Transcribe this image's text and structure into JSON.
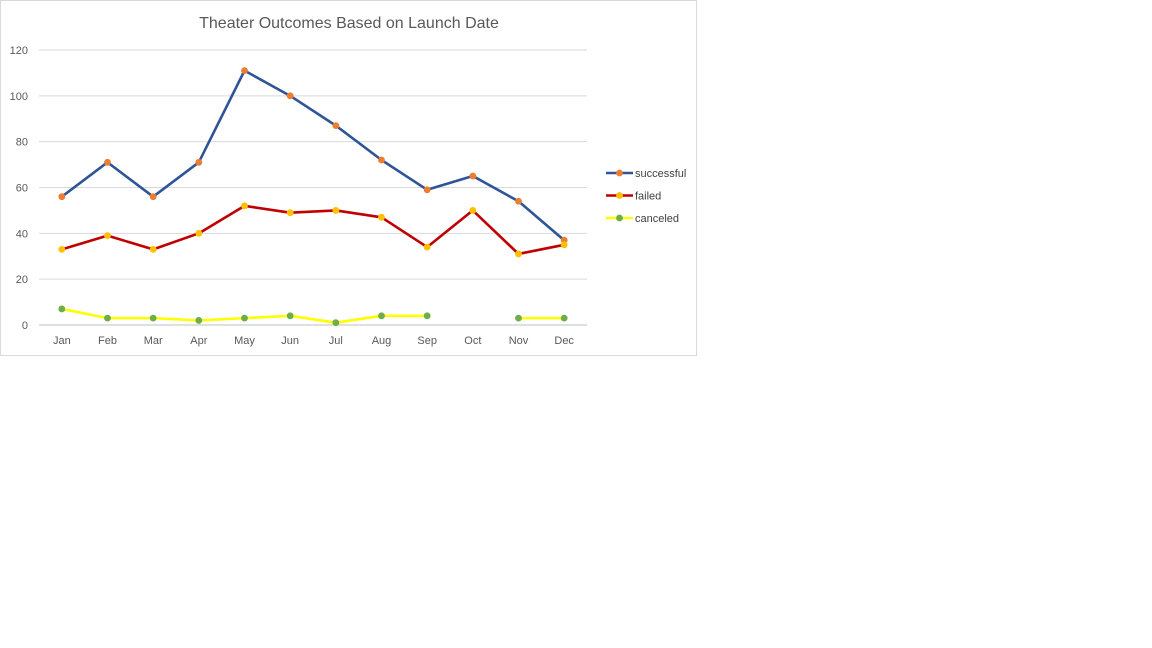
{
  "chart_data": {
    "type": "line",
    "title": "Theater Outcomes Based on Launch Date",
    "xlabel": "",
    "ylabel": "",
    "categories": [
      "Jan",
      "Feb",
      "Mar",
      "Apr",
      "May",
      "Jun",
      "Jul",
      "Aug",
      "Sep",
      "Oct",
      "Nov",
      "Dec"
    ],
    "ylim": [
      0,
      120
    ],
    "yticks": [
      0,
      20,
      40,
      60,
      80,
      100,
      120
    ],
    "grid": true,
    "legend_position": "right",
    "series": [
      {
        "name": "successful",
        "values": [
          56,
          71,
          56,
          71,
          111,
          100,
          87,
          72,
          59,
          65,
          54,
          37
        ],
        "line_color": "#2f5597",
        "marker_color": "#ed7d31"
      },
      {
        "name": "failed",
        "values": [
          33,
          39,
          33,
          40,
          52,
          49,
          50,
          47,
          34,
          50,
          31,
          35
        ],
        "line_color": "#c00000",
        "marker_color": "#ffc000"
      },
      {
        "name": "canceled",
        "values": [
          7,
          3,
          3,
          2,
          3,
          4,
          1,
          4,
          4,
          null,
          3,
          3
        ],
        "line_color": "#ffff00",
        "marker_color": "#70ad47"
      }
    ]
  }
}
